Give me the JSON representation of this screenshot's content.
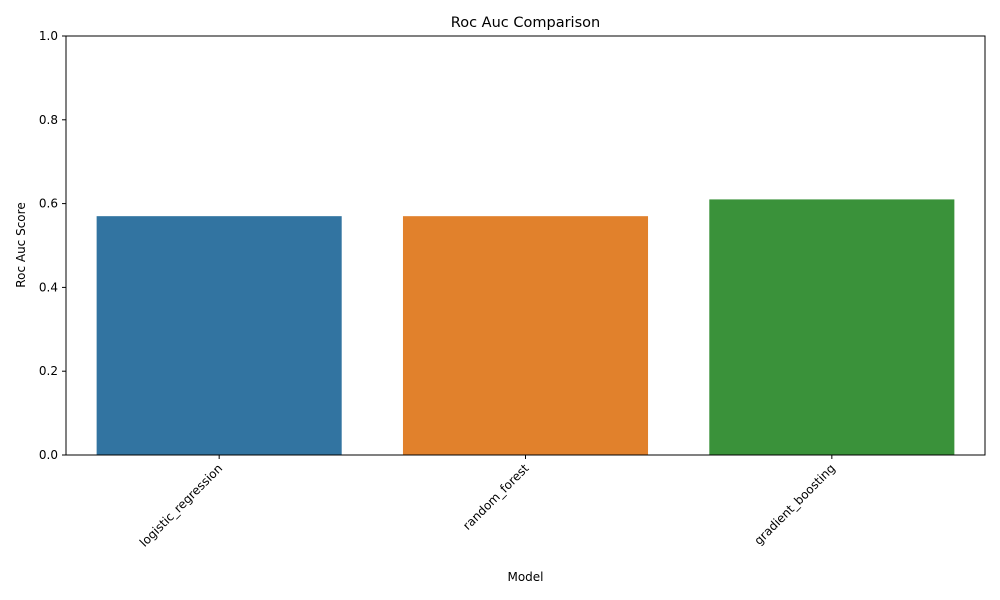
{
  "chart_data": {
    "type": "bar",
    "title": "Roc Auc Comparison",
    "xlabel": "Model",
    "ylabel": "Roc Auc Score",
    "categories": [
      "logistic_regression",
      "random_forest",
      "gradient_boosting"
    ],
    "values": [
      0.57,
      0.57,
      0.61
    ],
    "colors": [
      "#3274a1",
      "#e1812c",
      "#3a923a"
    ],
    "ylim": [
      0,
      1
    ],
    "yticks": [
      0.0,
      0.2,
      0.4,
      0.6,
      0.8,
      1.0
    ],
    "ytick_labels": [
      "0.0",
      "0.2",
      "0.4",
      "0.6",
      "0.8",
      "1.0"
    ],
    "xtick_rotation_deg": 45,
    "grid": false,
    "legend": "none"
  }
}
